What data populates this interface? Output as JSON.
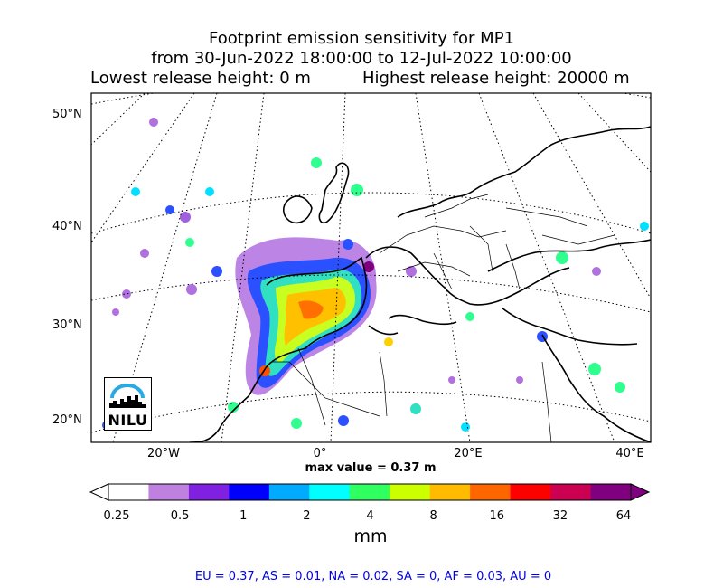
{
  "title": {
    "line1": "Footprint emission sensitivity for MP1",
    "line2": "from 30-Jun-2022 18:00:00 to 12-Jul-2022 10:00:00",
    "line3_left": "Lowest release height: 0 m",
    "line3_right": "Highest release height: 20000 m"
  },
  "map": {
    "lat_labels": [
      "50°N",
      "40°N",
      "30°N",
      "20°N"
    ],
    "lon_labels": [
      "20°W",
      "0°",
      "20°E",
      "40°E"
    ],
    "max_value_text": "max value = 0.37 m",
    "logo_text": "NILU"
  },
  "colorbar": {
    "ticks": [
      "0.25",
      "0.5",
      "1",
      "2",
      "4",
      "8",
      "16",
      "32",
      "64"
    ],
    "unit": "mm",
    "colors": [
      "#ffffff",
      "#c080e0",
      "#8020e0",
      "#0000ff",
      "#00aaff",
      "#00ffff",
      "#30ff60",
      "#ccff00",
      "#ffbb00",
      "#ff6600",
      "#ff0000",
      "#cc0050",
      "#800080"
    ]
  },
  "stats": "EU = 0.37,  AS = 0.01,  NA = 0.02,  SA = 0,  AF = 0.03,  AU = 0"
}
